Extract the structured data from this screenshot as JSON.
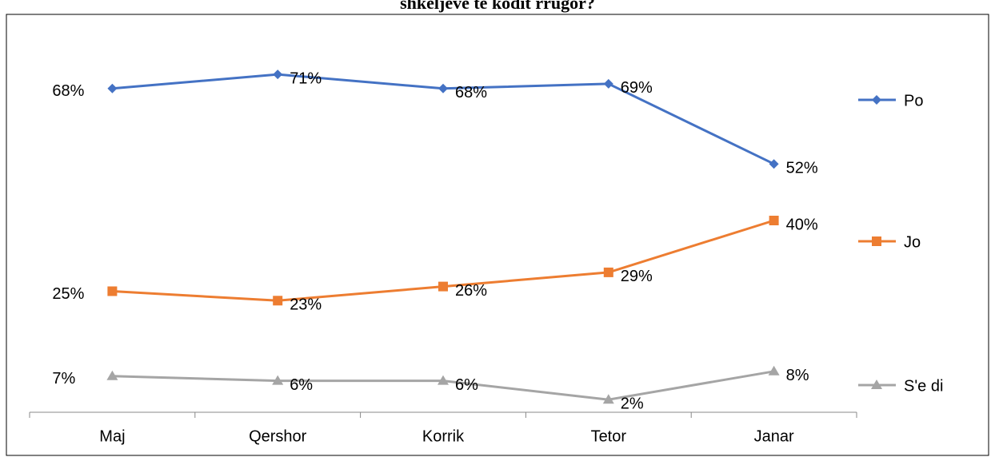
{
  "chart_data": {
    "type": "line",
    "title": "shkeljeve te kodit rrugor?",
    "categories": [
      "Maj",
      "Qershor",
      "Korrik",
      "Tetor",
      "Janar"
    ],
    "series": [
      {
        "name": "Po",
        "color": "#4472c4",
        "marker": "diamond",
        "values": [
          68,
          71,
          68,
          69,
          52
        ],
        "value_labels": [
          "68%",
          "71%",
          "68%",
          "69%",
          "52%"
        ]
      },
      {
        "name": "Jo",
        "color": "#ed7d31",
        "marker": "square",
        "values": [
          25,
          23,
          26,
          29,
          40
        ],
        "value_labels": [
          "25%",
          "23%",
          "26%",
          "29%",
          "40%"
        ]
      },
      {
        "name": "S'e di",
        "color": "#a5a5a5",
        "marker": "triangle",
        "values": [
          7,
          6,
          6,
          2,
          8
        ],
        "value_labels": [
          "7%",
          "6%",
          "6%",
          "2%",
          "8%"
        ]
      }
    ],
    "ylim": [
      0,
      80
    ],
    "legend": "right"
  }
}
